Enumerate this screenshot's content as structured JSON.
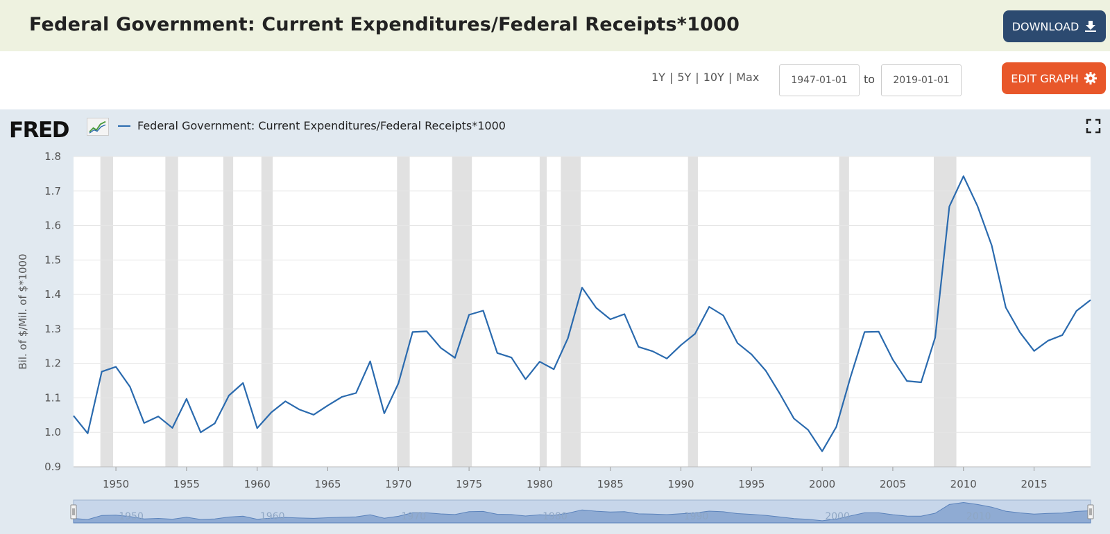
{
  "header": {
    "title": "Federal Government: Current Expenditures/Federal Receipts*1000",
    "download_label": "DOWNLOAD"
  },
  "toolbar": {
    "ranges": [
      "1Y",
      "5Y",
      "10Y",
      "Max"
    ],
    "start_date": "1947-01-01",
    "to_label": "to",
    "end_date": "2019-01-01",
    "edit_label": "EDIT GRAPH"
  },
  "logo": {
    "text": "FRED"
  },
  "icons": {
    "download": "download-icon",
    "edit": "gear-icon",
    "fullscreen": "fullscreen-icon",
    "logo": "fred-chart-icon"
  },
  "colors": {
    "series": "#2a6aae",
    "recession": "#e1e1e1",
    "download_bg": "#2c4a70",
    "edit_bg": "#e8572a",
    "header_bg": "#eef2e0",
    "chart_bg": "#e1e9f0"
  },
  "chart_data": {
    "type": "line",
    "title": "",
    "xlabel": "",
    "ylabel": "Bil. of $/Mil. of $*1000",
    "xlim": [
      1947,
      2019
    ],
    "ylim": [
      0.9,
      1.8
    ],
    "grid": true,
    "legend_position": "top-left",
    "y_ticks": [
      "0.9",
      "1.0",
      "1.1",
      "1.2",
      "1.3",
      "1.4",
      "1.5",
      "1.6",
      "1.7",
      "1.8"
    ],
    "x_ticks": [
      "1950",
      "1955",
      "1960",
      "1965",
      "1970",
      "1975",
      "1980",
      "1985",
      "1990",
      "1995",
      "2000",
      "2005",
      "2010",
      "2015"
    ],
    "recessions": [
      [
        1948.9,
        1949.8
      ],
      [
        1953.5,
        1954.4
      ],
      [
        1957.6,
        1958.3
      ],
      [
        1960.3,
        1961.1
      ],
      [
        1969.9,
        1970.8
      ],
      [
        1973.8,
        1975.2
      ],
      [
        1980.0,
        1980.5
      ],
      [
        1981.5,
        1982.9
      ],
      [
        1990.5,
        1991.2
      ],
      [
        2001.2,
        2001.9
      ],
      [
        2007.9,
        2009.5
      ]
    ],
    "series": [
      {
        "name": "Federal Government: Current Expenditures/Federal Receipts*1000",
        "x": [
          1947,
          1948,
          1949,
          1950,
          1951,
          1952,
          1953,
          1954,
          1955,
          1956,
          1957,
          1958,
          1959,
          1960,
          1961,
          1962,
          1963,
          1964,
          1965,
          1966,
          1967,
          1968,
          1969,
          1970,
          1971,
          1972,
          1973,
          1974,
          1975,
          1976,
          1977,
          1978,
          1979,
          1980,
          1981,
          1982,
          1983,
          1984,
          1985,
          1986,
          1987,
          1988,
          1989,
          1990,
          1991,
          1992,
          1993,
          1994,
          1995,
          1996,
          1997,
          1998,
          1999,
          2000,
          2001,
          2002,
          2003,
          2004,
          2005,
          2006,
          2007,
          2008,
          2009,
          2010,
          2011,
          2012,
          2013,
          2014,
          2015,
          2016,
          2017,
          2018,
          2019
        ],
        "values": [
          1.048,
          0.997,
          1.176,
          1.19,
          1.132,
          1.027,
          1.046,
          1.013,
          1.097,
          1.0,
          1.026,
          1.107,
          1.143,
          1.012,
          1.058,
          1.09,
          1.066,
          1.051,
          1.078,
          1.103,
          1.114,
          1.206,
          1.055,
          1.142,
          1.291,
          1.293,
          1.245,
          1.216,
          1.341,
          1.353,
          1.23,
          1.217,
          1.154,
          1.205,
          1.183,
          1.273,
          1.42,
          1.361,
          1.328,
          1.343,
          1.248,
          1.235,
          1.214,
          1.253,
          1.286,
          1.364,
          1.339,
          1.259,
          1.226,
          1.179,
          1.112,
          1.04,
          1.007,
          0.945,
          1.016,
          1.16,
          1.291,
          1.292,
          1.211,
          1.149,
          1.145,
          1.275,
          1.655,
          1.743,
          1.656,
          1.542,
          1.362,
          1.29,
          1.236,
          1.266,
          1.282,
          1.352,
          1.384
        ]
      }
    ],
    "navigator_x_ticks": [
      "1950",
      "1960",
      "1970",
      "1980",
      "1990",
      "2000",
      "2010"
    ]
  }
}
